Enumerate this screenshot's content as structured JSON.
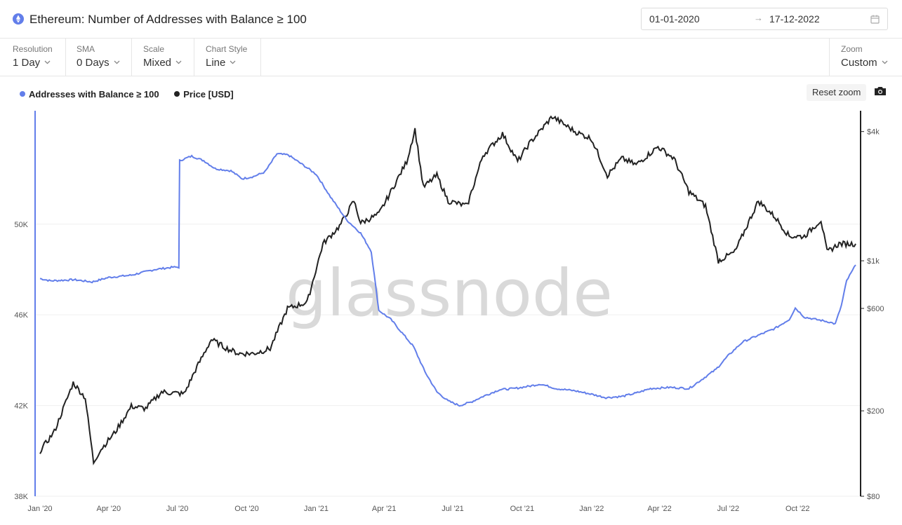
{
  "header": {
    "title": "Ethereum: Number of Addresses with Balance ≥ 100",
    "date_start": "01-01-2020",
    "date_arrow": "→",
    "date_end": "17-12-2022"
  },
  "controls": {
    "resolution": {
      "label": "Resolution",
      "value": "1 Day"
    },
    "sma": {
      "label": "SMA",
      "value": "0 Days"
    },
    "scale": {
      "label": "Scale",
      "value": "Mixed"
    },
    "chart_style": {
      "label": "Chart Style",
      "value": "Line"
    },
    "zoom": {
      "label": "Zoom",
      "value": "Custom"
    }
  },
  "toolbar": {
    "reset_zoom_label": "Reset zoom"
  },
  "watermark": "glassnode",
  "icons": {
    "asset": "ethereum-icon",
    "calendar": "calendar-icon",
    "camera": "camera-icon",
    "dropdown": "chevron-down-icon"
  },
  "colors": {
    "addresses": "#627eea",
    "price": "#222222"
  },
  "chart_data": {
    "type": "line",
    "x_ticks": [
      "Jan '20",
      "Apr '20",
      "Jul '20",
      "Oct '20",
      "Jan '21",
      "Apr '21",
      "Jul '21",
      "Oct '21",
      "Jan '22",
      "Apr '22",
      "Jul '22",
      "Oct '22"
    ],
    "x_range": [
      "2020-01-01",
      "2022-12-17"
    ],
    "left_axis": {
      "scale": "linear",
      "range": [
        38000,
        55000
      ],
      "ticks": [
        "38K",
        "42K",
        "46K",
        "50K"
      ],
      "tick_values": [
        38000,
        42000,
        46000,
        50000
      ]
    },
    "right_axis": {
      "scale": "log",
      "range": [
        80,
        5000
      ],
      "ticks": [
        "$80",
        "$200",
        "$600",
        "$1k",
        "$4k"
      ],
      "tick_values": [
        80,
        200,
        600,
        1000,
        4000
      ]
    },
    "legend_position": "top-left",
    "grid": true,
    "series": [
      {
        "name": "Addresses with Balance ≥ 100",
        "axis": "left",
        "points": [
          [
            "2020-01-01",
            47600
          ],
          [
            "2020-01-15",
            47500
          ],
          [
            "2020-02-15",
            47550
          ],
          [
            "2020-03-10",
            47450
          ],
          [
            "2020-04-01",
            47650
          ],
          [
            "2020-05-01",
            47750
          ],
          [
            "2020-06-01",
            48000
          ],
          [
            "2020-06-25",
            48100
          ],
          [
            "2020-07-03",
            48100
          ],
          [
            "2020-07-04",
            52800
          ],
          [
            "2020-07-20",
            53000
          ],
          [
            "2020-08-05",
            52800
          ],
          [
            "2020-08-20",
            52450
          ],
          [
            "2020-09-10",
            52350
          ],
          [
            "2020-09-25",
            52000
          ],
          [
            "2020-10-10",
            52100
          ],
          [
            "2020-10-25",
            52300
          ],
          [
            "2020-11-10",
            53100
          ],
          [
            "2020-11-25",
            53050
          ],
          [
            "2020-12-15",
            52600
          ],
          [
            "2021-01-01",
            52200
          ],
          [
            "2021-01-20",
            51200
          ],
          [
            "2021-02-10",
            50200
          ],
          [
            "2021-03-01",
            49600
          ],
          [
            "2021-03-15",
            48800
          ],
          [
            "2021-03-25",
            46200
          ],
          [
            "2021-04-10",
            45800
          ],
          [
            "2021-04-25",
            45200
          ],
          [
            "2021-05-10",
            44600
          ],
          [
            "2021-05-25",
            43500
          ],
          [
            "2021-06-10",
            42600
          ],
          [
            "2021-06-25",
            42200
          ],
          [
            "2021-07-10",
            42000
          ],
          [
            "2021-07-25",
            42150
          ],
          [
            "2021-08-10",
            42400
          ],
          [
            "2021-09-01",
            42700
          ],
          [
            "2021-09-20",
            42750
          ],
          [
            "2021-10-10",
            42850
          ],
          [
            "2021-10-25",
            42950
          ],
          [
            "2021-11-15",
            42750
          ],
          [
            "2021-12-10",
            42650
          ],
          [
            "2022-01-01",
            42500
          ],
          [
            "2022-01-20",
            42350
          ],
          [
            "2022-02-10",
            42400
          ],
          [
            "2022-03-01",
            42550
          ],
          [
            "2022-03-20",
            42750
          ],
          [
            "2022-04-15",
            42800
          ],
          [
            "2022-05-10",
            42750
          ],
          [
            "2022-05-25",
            43100
          ],
          [
            "2022-06-15",
            43600
          ],
          [
            "2022-07-01",
            44200
          ],
          [
            "2022-07-20",
            44800
          ],
          [
            "2022-08-10",
            45100
          ],
          [
            "2022-09-01",
            45400
          ],
          [
            "2022-09-20",
            45800
          ],
          [
            "2022-09-28",
            46300
          ],
          [
            "2022-10-10",
            45900
          ],
          [
            "2022-10-25",
            45800
          ],
          [
            "2022-11-10",
            45700
          ],
          [
            "2022-11-20",
            45600
          ],
          [
            "2022-11-28",
            46400
          ],
          [
            "2022-12-05",
            47500
          ],
          [
            "2022-12-17",
            48200
          ]
        ]
      },
      {
        "name": "Price [USD]",
        "axis": "right",
        "points": [
          [
            "2020-01-01",
            130
          ],
          [
            "2020-01-20",
            160
          ],
          [
            "2020-02-14",
            270
          ],
          [
            "2020-03-01",
            230
          ],
          [
            "2020-03-12",
            115
          ],
          [
            "2020-03-20",
            130
          ],
          [
            "2020-04-10",
            160
          ],
          [
            "2020-05-01",
            210
          ],
          [
            "2020-05-20",
            205
          ],
          [
            "2020-06-10",
            245
          ],
          [
            "2020-07-10",
            240
          ],
          [
            "2020-07-25",
            310
          ],
          [
            "2020-08-15",
            430
          ],
          [
            "2020-09-05",
            390
          ],
          [
            "2020-09-20",
            370
          ],
          [
            "2020-10-10",
            370
          ],
          [
            "2020-11-01",
            390
          ],
          [
            "2020-11-24",
            600
          ],
          [
            "2020-12-20",
            640
          ],
          [
            "2021-01-10",
            1200
          ],
          [
            "2021-02-01",
            1450
          ],
          [
            "2021-02-20",
            1900
          ],
          [
            "2021-03-01",
            1500
          ],
          [
            "2021-03-25",
            1650
          ],
          [
            "2021-04-10",
            2100
          ],
          [
            "2021-05-01",
            2900
          ],
          [
            "2021-05-12",
            4100
          ],
          [
            "2021-05-23",
            2200
          ],
          [
            "2021-06-10",
            2500
          ],
          [
            "2021-06-25",
            1900
          ],
          [
            "2021-07-20",
            1800
          ],
          [
            "2021-08-10",
            3100
          ],
          [
            "2021-09-05",
            3900
          ],
          [
            "2021-09-25",
            2900
          ],
          [
            "2021-10-10",
            3500
          ],
          [
            "2021-11-10",
            4700
          ],
          [
            "2021-12-10",
            4000
          ],
          [
            "2022-01-01",
            3700
          ],
          [
            "2022-01-22",
            2500
          ],
          [
            "2022-02-10",
            3000
          ],
          [
            "2022-03-01",
            2800
          ],
          [
            "2022-03-30",
            3400
          ],
          [
            "2022-04-20",
            3000
          ],
          [
            "2022-05-10",
            2100
          ],
          [
            "2022-06-01",
            1800
          ],
          [
            "2022-06-18",
            1000
          ],
          [
            "2022-07-10",
            1100
          ],
          [
            "2022-08-10",
            1900
          ],
          [
            "2022-09-01",
            1600
          ],
          [
            "2022-09-20",
            1300
          ],
          [
            "2022-10-10",
            1300
          ],
          [
            "2022-11-01",
            1550
          ],
          [
            "2022-11-09",
            1100
          ],
          [
            "2022-11-25",
            1200
          ],
          [
            "2022-12-17",
            1200
          ]
        ]
      }
    ]
  }
}
